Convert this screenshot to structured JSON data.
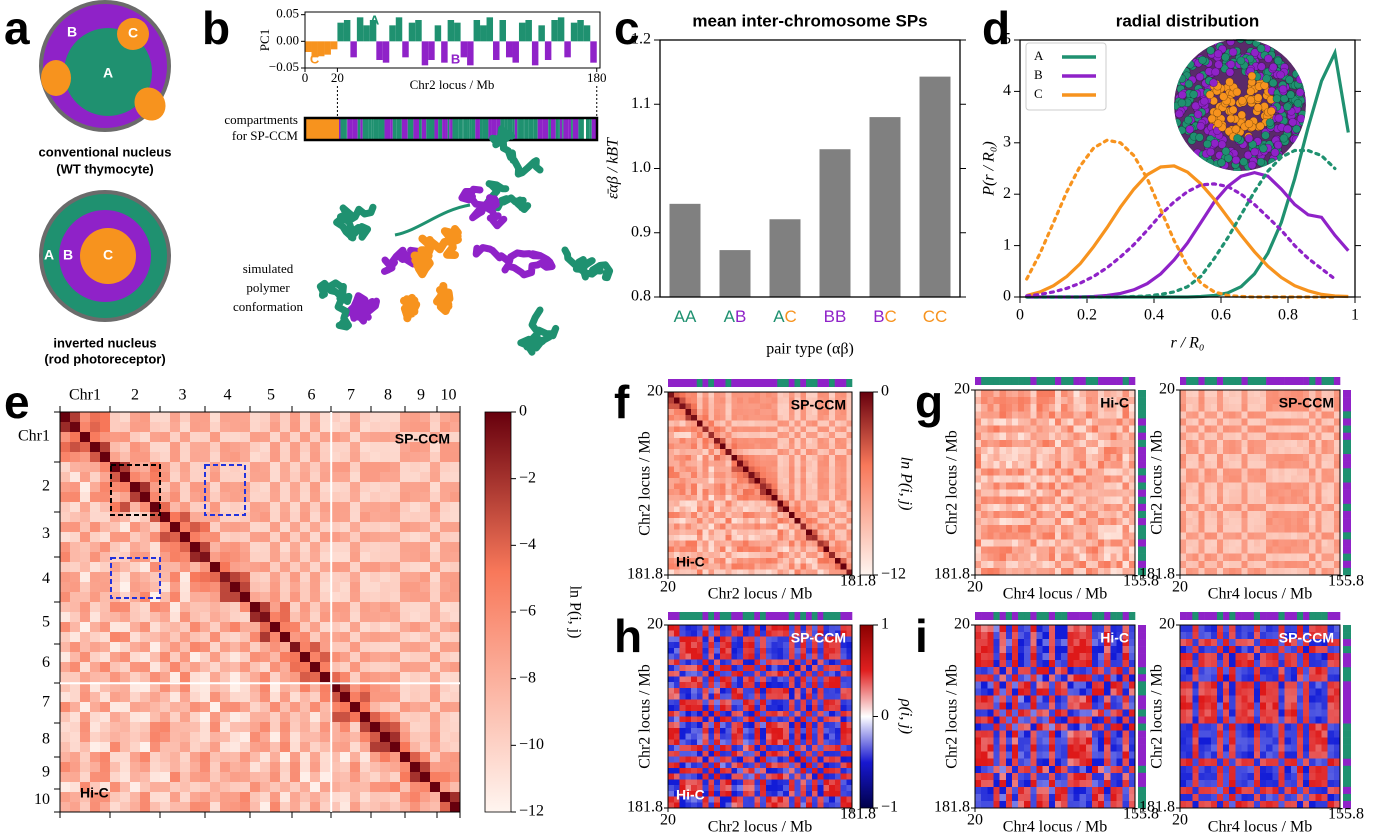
{
  "panel_letters": [
    "a",
    "b",
    "c",
    "d",
    "e",
    "f",
    "g",
    "h",
    "i"
  ],
  "compartment_colors": {
    "A": "#1f9170",
    "B": "#8f22c8",
    "C": "#f7931e"
  },
  "nuclei": [
    {
      "labels": [
        "A",
        "B",
        "C"
      ],
      "caption": [
        "conventional nucleus",
        "(WT thymocyte)"
      ]
    },
    {
      "labels": [
        "A",
        "B",
        "C"
      ],
      "caption": [
        "inverted nucleus",
        "(rod photoreceptor)"
      ]
    }
  ],
  "compartment_strip_label": [
    "compartments",
    "for SP-CCM"
  ],
  "polymer_label": [
    "simulated",
    "polymer",
    "conformation"
  ],
  "chart_data": [
    {
      "type": "bar",
      "ylabel": "PC1",
      "xlabel": "Chr2 locus / Mb",
      "xlim": [
        0,
        182
      ],
      "xticks": [
        0,
        20,
        180
      ],
      "ylim": [
        -0.05,
        0.055
      ],
      "yticks": [
        0.05,
        {
          "value": 0,
          "label": "0.00"
        },
        {
          "value": -0.05,
          "label": "−0.05"
        }
      ],
      "x": [
        2,
        6,
        10,
        14,
        18,
        22,
        26,
        30,
        34,
        38,
        42,
        46,
        50,
        54,
        58,
        62,
        66,
        70,
        74,
        78,
        82,
        86,
        90,
        94,
        98,
        102,
        106,
        110,
        114,
        118,
        122,
        126,
        130,
        134,
        138,
        142,
        146,
        150,
        154,
        158,
        162,
        166,
        170,
        174,
        178
      ],
      "series": [
        {
          "name": "A",
          "color": "#1f9170",
          "values": [
            null,
            null,
            null,
            null,
            null,
            0.035,
            0.04,
            null,
            0.045,
            0.03,
            0.04,
            null,
            null,
            0.03,
            0.045,
            null,
            0.035,
            0.04,
            null,
            null,
            0.03,
            null,
            0.04,
            0.035,
            null,
            null,
            0.04,
            0.03,
            0.045,
            null,
            0.04,
            null,
            null,
            0.035,
            0.04,
            null,
            0.03,
            null,
            0.04,
            0.045,
            null,
            0.035,
            0.04,
            0.03,
            null
          ]
        },
        {
          "name": "B",
          "color": "#8f22c8",
          "values": [
            null,
            null,
            null,
            null,
            null,
            null,
            null,
            -0.03,
            null,
            null,
            null,
            -0.035,
            -0.04,
            null,
            null,
            -0.03,
            null,
            null,
            -0.045,
            -0.035,
            null,
            -0.04,
            null,
            null,
            -0.03,
            -0.045,
            null,
            null,
            null,
            -0.035,
            null,
            -0.03,
            -0.04,
            null,
            null,
            -0.045,
            null,
            -0.035,
            null,
            null,
            -0.03,
            null,
            null,
            null,
            -0.04
          ]
        },
        {
          "name": "C",
          "color": "#f7931e",
          "values": [
            -0.02,
            -0.03,
            -0.028,
            -0.025,
            -0.015,
            null,
            null,
            null,
            null,
            null,
            null,
            null,
            null,
            null,
            null,
            null,
            null,
            null,
            null,
            null,
            null,
            null,
            null,
            null,
            null,
            null,
            null,
            null,
            null,
            null,
            null,
            null,
            null,
            null,
            null,
            null,
            null,
            null,
            null,
            null,
            null,
            null,
            null,
            null,
            null
          ]
        }
      ]
    },
    {
      "type": "bar",
      "title": "mean inter-chromosome SPs",
      "xlabel": "pair type (αβ)",
      "ylabel": "ε̄αβ / kBT",
      "categories": [
        "AA",
        "AB",
        "AC",
        "BB",
        "BC",
        "CC"
      ],
      "values": [
        0.945,
        0.873,
        0.921,
        1.03,
        1.08,
        1.143
      ],
      "color": "#808080",
      "ylim": [
        0.8,
        1.2
      ],
      "yticks": [
        0.8,
        0.9,
        {
          "value": 1,
          "label": "1.0"
        },
        1.1,
        1.2
      ]
    },
    {
      "type": "line",
      "title": "radial distribution",
      "xlabel": "r / R₀",
      "ylabel": "P(r / R₀)",
      "xlim": [
        0,
        1
      ],
      "xticks": [
        0,
        0.2,
        0.4,
        0.6,
        0.8,
        1
      ],
      "ylim": [
        0,
        5
      ],
      "yticks": [
        0,
        1,
        2,
        3,
        4,
        5
      ],
      "legend": "upper left",
      "x": [
        0.02,
        0.06,
        0.1,
        0.14,
        0.18,
        0.22,
        0.26,
        0.3,
        0.34,
        0.38,
        0.42,
        0.46,
        0.5,
        0.54,
        0.58,
        0.62,
        0.66,
        0.7,
        0.74,
        0.78,
        0.82,
        0.86,
        0.9,
        0.94,
        0.98
      ],
      "series": [
        {
          "name": "A",
          "color": "#1f9170",
          "linestyle": "solid",
          "values": [
            0,
            0,
            0,
            0,
            0,
            0,
            0,
            0,
            0,
            0,
            0,
            0,
            0,
            0.01,
            0.03,
            0.08,
            0.2,
            0.45,
            0.85,
            1.45,
            2.3,
            3.3,
            4.2,
            4.75,
            3.2
          ]
        },
        {
          "name": "B",
          "color": "#8f22c8",
          "linestyle": "solid",
          "values": [
            0,
            0,
            0,
            0,
            0,
            0.01,
            0.03,
            0.07,
            0.14,
            0.26,
            0.45,
            0.72,
            1.05,
            1.45,
            1.85,
            2.15,
            2.35,
            2.42,
            2.35,
            2.1,
            1.8,
            1.6,
            1.55,
            1.2,
            0.9
          ]
        },
        {
          "name": "C",
          "color": "#f7931e",
          "linestyle": "solid",
          "values": [
            0.03,
            0.1,
            0.22,
            0.4,
            0.65,
            0.98,
            1.35,
            1.75,
            2.1,
            2.38,
            2.53,
            2.55,
            2.43,
            2.2,
            1.9,
            1.55,
            1.2,
            0.88,
            0.6,
            0.38,
            0.22,
            0.12,
            0.05,
            0.02,
            0.01
          ]
        },
        {
          "color": "#1f9170",
          "linestyle": "dotted",
          "values": [
            0,
            0,
            0,
            0,
            0,
            0,
            0,
            0,
            0.01,
            0.02,
            0.05,
            0.1,
            0.2,
            0.4,
            0.75,
            1.15,
            1.6,
            2.05,
            2.45,
            2.72,
            2.85,
            2.85,
            2.75,
            2.5,
            null
          ]
        },
        {
          "color": "#8f22c8",
          "linestyle": "dotted",
          "values": [
            0.02,
            0.05,
            0.1,
            0.17,
            0.27,
            0.4,
            0.57,
            0.78,
            1.02,
            1.3,
            1.6,
            1.85,
            2.05,
            2.18,
            2.2,
            2.15,
            2.0,
            1.8,
            1.55,
            1.3,
            1.0,
            0.75,
            0.55,
            0.35,
            null
          ]
        },
        {
          "color": "#f7931e",
          "linestyle": "dotted",
          "values": [
            0.35,
            0.85,
            1.45,
            2.05,
            2.55,
            2.9,
            3.05,
            3.0,
            2.75,
            2.3,
            1.7,
            1.1,
            0.6,
            0.27,
            0.1,
            0.03,
            0.01,
            0,
            0,
            0,
            0,
            0,
            0,
            0,
            null
          ]
        }
      ]
    }
  ],
  "heatmaps": [
    {
      "scheme": "reds",
      "chromosomes": [
        "Chr1",
        "2",
        "3",
        "4",
        "5",
        "6",
        "7",
        "8",
        "9",
        "10"
      ],
      "labels": [
        "SP-CCM",
        "Hi-C"
      ],
      "colorbar": {
        "lim": [
          -12,
          0
        ],
        "ticks": [
          0,
          {
            "value": -2,
            "label": "−2"
          },
          {
            "value": -4,
            "label": "−4"
          },
          {
            "value": -6,
            "label": "−6"
          },
          {
            "value": -8,
            "label": "−8"
          },
          {
            "value": -10,
            "label": "−10"
          },
          {
            "value": -12,
            "label": "−12"
          }
        ],
        "label": "ln P(i, j)"
      }
    },
    {
      "scheme": "reds",
      "labels": [
        "SP-CCM",
        "Hi-C"
      ],
      "xlabel": "Chr2 locus / Mb",
      "ylabel": "Chr2 locus / Mb",
      "xlim": [
        20,
        181.8
      ],
      "xticks": [
        20,
        181.8
      ],
      "ylim": [
        20,
        181.8
      ],
      "yticks": [
        20,
        181.8
      ],
      "colorbar": {
        "lim": [
          -12,
          0
        ],
        "ticks": [
          0,
          {
            "value": -12,
            "label": "−12"
          }
        ],
        "label": "ln P(i, j)"
      }
    },
    {
      "scheme": "reds",
      "labels": [
        "Hi-C",
        "SP-CCM"
      ],
      "xlabel": "Chr4 locus / Mb",
      "ylabel": "Chr2 locus / Mb",
      "xlim": [
        20,
        155.8
      ],
      "xticks": [
        20,
        155.8
      ],
      "ylim": [
        20,
        181.8
      ],
      "yticks": [
        20,
        181.8
      ]
    },
    {
      "scheme": "rwb",
      "labels": [
        "SP-CCM",
        "Hi-C"
      ],
      "xlabel": "Chr2 locus / Mb",
      "ylabel": "Chr2 locus / Mb",
      "xlim": [
        20,
        181.8
      ],
      "xticks": [
        20,
        181.8
      ],
      "ylim": [
        20,
        181.8
      ],
      "yticks": [
        20,
        181.8
      ],
      "colorbar": {
        "lim": [
          -1,
          1
        ],
        "ticks": [
          1,
          0,
          {
            "value": -1,
            "label": "−1"
          }
        ],
        "label": "ρ(i, j)"
      }
    },
    {
      "scheme": "rwb",
      "labels": [
        "Hi-C",
        "SP-CCM"
      ],
      "xlabel": "Chr4 locus / Mb",
      "ylabel": "Chr2 locus / Mb",
      "xlim": [
        20,
        155.8
      ],
      "xticks": [
        20,
        155.8
      ],
      "ylim": [
        20,
        181.8
      ],
      "yticks": [
        20,
        181.8
      ]
    }
  ]
}
